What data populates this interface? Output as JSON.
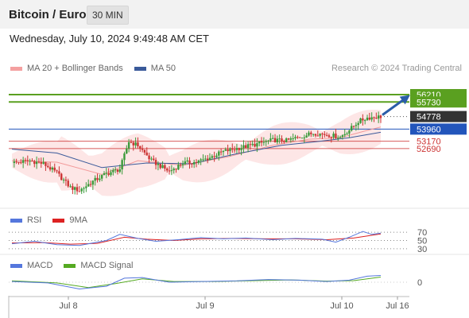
{
  "header": {
    "title": "Bitcoin / Euro",
    "interval": "30 MIN"
  },
  "datetime": "Wednesday, July 10, 2024 9:49:48 AM CET",
  "legend": {
    "main": [
      {
        "label": "MA 20 + Bollinger Bands",
        "color": "#f4a0a0"
      },
      {
        "label": "MA 50",
        "color": "#3a5a9a"
      }
    ],
    "rsi": [
      {
        "label": "RSI",
        "color": "#5577dd"
      },
      {
        "label": "9MA",
        "color": "#dd2222"
      }
    ],
    "macd": [
      {
        "label": "MACD",
        "color": "#5577dd"
      },
      {
        "label": "MACD Signal",
        "color": "#55aa22"
      }
    ]
  },
  "credit": "Research © 2024 Trading Central",
  "colors": {
    "up": "#3a9a3a",
    "down": "#cc3333",
    "target": "#5aa020",
    "support": "#cc3333",
    "pivot": "#2255bb",
    "arrow": "#2a5da8",
    "current": "#333333"
  },
  "chart_data": {
    "type": "candlestick",
    "instrument": "Bitcoin / Euro",
    "interval": "30 MIN",
    "x_ticks": [
      "Jul 8",
      "Jul 9",
      "Jul 10",
      "Jul 16"
    ],
    "price_levels": [
      {
        "value": "56210",
        "kind": "target"
      },
      {
        "value": "55730",
        "kind": "target"
      },
      {
        "value": "54778",
        "kind": "current"
      },
      {
        "value": "53960",
        "kind": "pivot"
      },
      {
        "value": "53170",
        "kind": "support"
      },
      {
        "value": "52690",
        "kind": "support"
      }
    ],
    "ylim": [
      49000,
      57300
    ],
    "close_path": [
      [
        0,
        51750
      ],
      [
        8,
        51900
      ],
      [
        14,
        51700
      ],
      [
        20,
        51100
      ],
      [
        26,
        50150
      ],
      [
        30,
        49950
      ],
      [
        36,
        50550
      ],
      [
        42,
        51050
      ],
      [
        48,
        51350
      ],
      [
        52,
        53150
      ],
      [
        56,
        52900
      ],
      [
        62,
        51900
      ],
      [
        70,
        51200
      ],
      [
        76,
        51750
      ],
      [
        82,
        51800
      ],
      [
        88,
        52100
      ],
      [
        94,
        52500
      ],
      [
        100,
        52700
      ],
      [
        108,
        52950
      ],
      [
        116,
        53250
      ],
      [
        122,
        53200
      ],
      [
        128,
        53450
      ],
      [
        134,
        53700
      ],
      [
        140,
        53600
      ],
      [
        146,
        53450
      ],
      [
        150,
        53900
      ],
      [
        154,
        54450
      ],
      [
        158,
        54700
      ],
      [
        164,
        54778
      ]
    ],
    "ma20_path": [
      [
        0,
        51900
      ],
      [
        20,
        51800
      ],
      [
        40,
        51000
      ],
      [
        56,
        51900
      ],
      [
        76,
        51600
      ],
      [
        96,
        52150
      ],
      [
        116,
        52900
      ],
      [
        132,
        53300
      ],
      [
        146,
        53400
      ],
      [
        156,
        53800
      ],
      [
        164,
        54100
      ]
    ],
    "ma50_path": [
      [
        0,
        52650
      ],
      [
        20,
        52400
      ],
      [
        40,
        51450
      ],
      [
        60,
        51750
      ],
      [
        80,
        51700
      ],
      [
        100,
        52350
      ],
      [
        120,
        52900
      ],
      [
        136,
        53150
      ],
      [
        150,
        53400
      ],
      [
        164,
        53750
      ]
    ],
    "rsi": {
      "levels": [
        70,
        50,
        30
      ],
      "ylim": [
        20,
        80
      ],
      "rsi_path": [
        [
          0,
          42
        ],
        [
          10,
          48
        ],
        [
          20,
          40
        ],
        [
          30,
          38
        ],
        [
          42,
          50
        ],
        [
          48,
          65
        ],
        [
          56,
          55
        ],
        [
          64,
          48
        ],
        [
          74,
          52
        ],
        [
          84,
          57
        ],
        [
          94,
          54
        ],
        [
          104,
          56
        ],
        [
          116,
          52
        ],
        [
          126,
          55
        ],
        [
          138,
          53
        ],
        [
          144,
          46
        ],
        [
          150,
          58
        ],
        [
          156,
          72
        ],
        [
          160,
          65
        ],
        [
          164,
          68
        ]
      ],
      "ma9_path": [
        [
          0,
          44
        ],
        [
          14,
          45
        ],
        [
          26,
          41
        ],
        [
          38,
          43
        ],
        [
          50,
          58
        ],
        [
          60,
          53
        ],
        [
          72,
          50
        ],
        [
          84,
          54
        ],
        [
          98,
          55
        ],
        [
          112,
          54
        ],
        [
          126,
          54
        ],
        [
          140,
          52
        ],
        [
          152,
          56
        ],
        [
          164,
          66
        ]
      ]
    },
    "macd": {
      "zero_label": "0",
      "ylim": [
        -1,
        1
      ],
      "macd_path": [
        [
          0,
          0.05
        ],
        [
          16,
          -0.05
        ],
        [
          30,
          -0.5
        ],
        [
          42,
          -0.3
        ],
        [
          50,
          0.3
        ],
        [
          58,
          0.35
        ],
        [
          70,
          0.0
        ],
        [
          84,
          0.05
        ],
        [
          100,
          0.1
        ],
        [
          114,
          0.2
        ],
        [
          128,
          0.15
        ],
        [
          140,
          0.05
        ],
        [
          150,
          0.15
        ],
        [
          158,
          0.45
        ],
        [
          164,
          0.5
        ]
      ],
      "signal_path": [
        [
          0,
          0.1
        ],
        [
          20,
          -0.05
        ],
        [
          34,
          -0.4
        ],
        [
          46,
          -0.1
        ],
        [
          58,
          0.25
        ],
        [
          72,
          0.05
        ],
        [
          90,
          0.05
        ],
        [
          108,
          0.12
        ],
        [
          124,
          0.17
        ],
        [
          140,
          0.08
        ],
        [
          152,
          0.12
        ],
        [
          164,
          0.38
        ]
      ]
    }
  }
}
